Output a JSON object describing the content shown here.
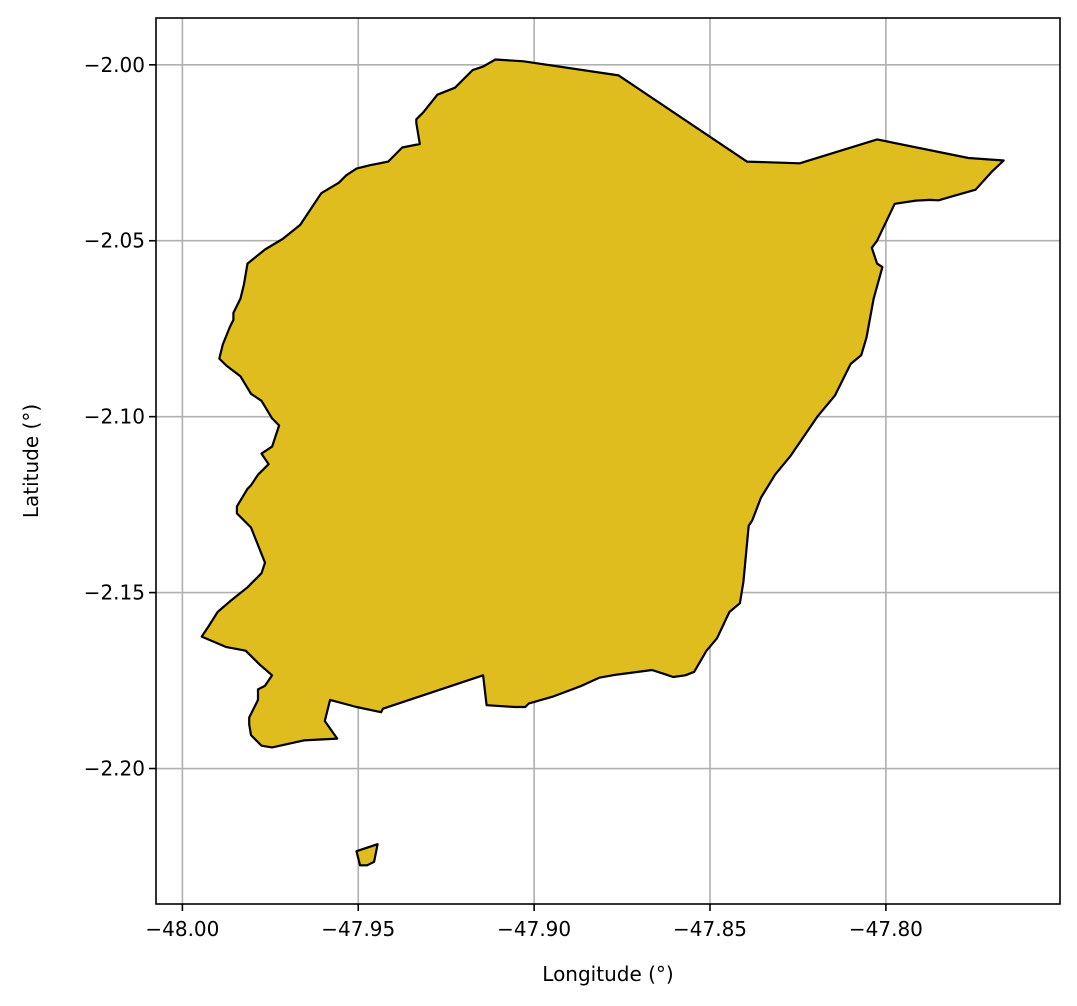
{
  "chart_data": {
    "type": "map",
    "xlabel": "Longitude (°)",
    "ylabel": "Latitude (°)",
    "xlim": [
      -48.0075,
      -47.7505
    ],
    "ylim": [
      -2.2385,
      -1.9867
    ],
    "xticks": [
      -48.0,
      -47.95,
      -47.9,
      -47.85,
      -47.8
    ],
    "xtick_labels": [
      "−48.00",
      "−47.95",
      "−47.90",
      "−47.85",
      "−47.80"
    ],
    "yticks": [
      -2.0,
      -2.05,
      -2.1,
      -2.15,
      -2.2
    ],
    "ytick_labels": [
      "−2.00",
      "−2.05",
      "−2.10",
      "−2.15",
      "−2.20"
    ],
    "grid": true,
    "fill_color": "#DFBD1F",
    "edge_color": "#000000",
    "grid_color": "#b0b0b0",
    "polygons": [
      {
        "part": "mainland",
        "lon": [
          -47.911,
          -47.903,
          -47.876,
          -47.8395,
          -47.8245,
          -47.8025,
          -47.7765,
          -47.7665,
          -47.77,
          -47.7745,
          -47.7815,
          -47.785,
          -47.7875,
          -47.7915,
          -47.7975,
          -47.8025,
          -47.804,
          -47.8025,
          -47.801,
          -47.8035,
          -47.8055,
          -47.807,
          -47.81,
          -47.8145,
          -47.8195,
          -47.827,
          -47.8315,
          -47.8355,
          -47.838,
          -47.839,
          -47.8405,
          -47.8415,
          -47.8445,
          -47.848,
          -47.851,
          -47.8545,
          -47.857,
          -47.8605,
          -47.8625,
          -47.8665,
          -47.8765,
          -47.8815,
          -47.8865,
          -47.8945,
          -47.9015,
          -47.9025,
          -47.9055,
          -47.9135,
          -47.9145,
          -47.943,
          -47.9435,
          -47.9505,
          -47.958,
          -47.9595,
          -47.956,
          -47.9655,
          -47.9745,
          -47.9775,
          -47.9805,
          -47.981,
          -47.981,
          -47.9785,
          -47.9785,
          -47.9765,
          -47.9745,
          -47.978,
          -47.982,
          -47.9875,
          -47.9945,
          -47.9925,
          -47.99,
          -47.9865,
          -47.9815,
          -47.9775,
          -47.9765,
          -47.9785,
          -47.9805,
          -47.9845,
          -47.9845,
          -47.9815,
          -47.9805,
          -47.9785,
          -47.9755,
          -47.9775,
          -47.9745,
          -47.9725,
          -47.9745,
          -47.9775,
          -47.9805,
          -47.9835,
          -47.9875,
          -47.9895,
          -47.9885,
          -47.9865,
          -47.9855,
          -47.9855,
          -47.9835,
          -47.9825,
          -47.9815,
          -47.9765,
          -47.9715,
          -47.9665,
          -47.9605,
          -47.9555,
          -47.9535,
          -47.9505,
          -47.9465,
          -47.9415,
          -47.9375,
          -47.9325,
          -47.9335,
          -47.9335,
          -47.9315,
          -47.9275,
          -47.9225,
          -47.9175,
          -47.9145
        ],
        "lat": [
          -1.9985,
          -1.999,
          -2.003,
          -2.0275,
          -2.028,
          -2.0212,
          -2.0265,
          -2.0272,
          -2.0305,
          -2.0355,
          -2.0375,
          -2.0385,
          -2.0384,
          -2.0386,
          -2.0395,
          -2.05,
          -2.052,
          -2.0565,
          -2.0575,
          -2.0665,
          -2.0775,
          -2.0825,
          -2.085,
          -2.094,
          -2.1,
          -2.111,
          -2.1165,
          -2.123,
          -2.1295,
          -2.131,
          -2.147,
          -2.153,
          -2.1555,
          -2.163,
          -2.1665,
          -2.1725,
          -2.1735,
          -2.174,
          -2.1733,
          -2.172,
          -2.1733,
          -2.1742,
          -2.1765,
          -2.1795,
          -2.1815,
          -2.1825,
          -2.1825,
          -2.182,
          -2.1735,
          -2.183,
          -2.184,
          -2.1825,
          -2.1805,
          -2.1865,
          -2.1915,
          -2.192,
          -2.194,
          -2.1935,
          -2.1905,
          -2.1875,
          -2.1855,
          -2.1805,
          -2.1775,
          -2.1765,
          -2.1735,
          -2.1705,
          -2.1665,
          -2.1655,
          -2.1625,
          -2.1595,
          -2.1555,
          -2.1525,
          -2.1485,
          -2.1445,
          -2.1415,
          -2.1365,
          -2.1315,
          -2.1275,
          -2.1255,
          -2.1205,
          -2.1195,
          -2.1165,
          -2.1135,
          -2.1105,
          -2.1085,
          -2.1025,
          -2.1005,
          -2.0955,
          -2.0935,
          -2.0885,
          -2.0855,
          -2.0835,
          -2.0795,
          -2.0745,
          -2.0725,
          -2.0705,
          -2.0665,
          -2.0625,
          -2.0565,
          -2.0525,
          -2.0495,
          -2.0455,
          -2.0365,
          -2.0335,
          -2.0315,
          -2.0295,
          -2.0285,
          -2.0275,
          -2.0235,
          -2.0225,
          -2.0165,
          -2.0155,
          -2.0135,
          -2.0085,
          -2.0065,
          -2.0015,
          -2.0005
        ]
      },
      {
        "part": "islet",
        "lon": [
          -47.9505,
          -47.9495,
          -47.9475,
          -47.9455,
          -47.9445,
          -47.9505
        ],
        "lat": [
          -2.2235,
          -2.2275,
          -2.2275,
          -2.2265,
          -2.2215,
          -2.2235
        ]
      }
    ]
  }
}
